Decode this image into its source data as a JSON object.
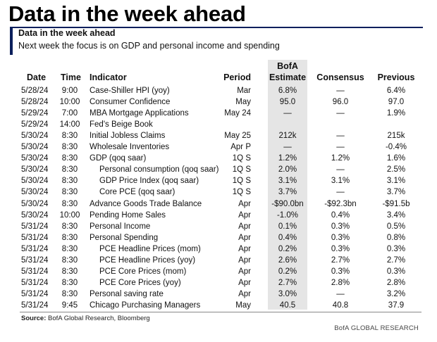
{
  "headline": "Data in the week ahead",
  "card": {
    "title": "Data in the week ahead",
    "subtitle": "Next week the focus is on GDP and personal income and spending"
  },
  "columns": {
    "date": "Date",
    "time": "Time",
    "indicator": "Indicator",
    "period": "Period",
    "bofa_line1": "BofA",
    "bofa_line2": "Estimate",
    "consensus": "Consensus",
    "previous": "Previous"
  },
  "rows": [
    {
      "date": "5/28/24",
      "time": "9:00",
      "indicator": "Case-Shiller HPI (yoy)",
      "sub": false,
      "period": "Mar",
      "estimate": "6.8%",
      "consensus": "—",
      "previous": "6.4%"
    },
    {
      "date": "5/28/24",
      "time": "10:00",
      "indicator": "Consumer Confidence",
      "sub": false,
      "period": "May",
      "estimate": "95.0",
      "consensus": "96.0",
      "previous": "97.0"
    },
    {
      "date": "5/29/24",
      "time": "7:00",
      "indicator": "MBA Mortgage Applications",
      "sub": false,
      "period": "May 24",
      "estimate": "—",
      "consensus": "—",
      "previous": "1.9%"
    },
    {
      "date": "5/29/24",
      "time": "14:00",
      "indicator": "Fed's Beige Book",
      "sub": false,
      "period": "",
      "estimate": "",
      "consensus": "",
      "previous": ""
    },
    {
      "date": "5/30/24",
      "time": "8:30",
      "indicator": "Initial Jobless Claims",
      "sub": false,
      "period": "May 25",
      "estimate": "212k",
      "consensus": "—",
      "previous": "215k"
    },
    {
      "date": "5/30/24",
      "time": "8:30",
      "indicator": "Wholesale Inventories",
      "sub": false,
      "period": "Apr P",
      "estimate": "—",
      "consensus": "—",
      "previous": "-0.4%"
    },
    {
      "date": "5/30/24",
      "time": "8:30",
      "indicator": "GDP (qoq saar)",
      "sub": false,
      "period": "1Q S",
      "estimate": "1.2%",
      "consensus": "1.2%",
      "previous": "1.6%"
    },
    {
      "date": "5/30/24",
      "time": "8:30",
      "indicator": "Personal consumption (qoq saar)",
      "sub": true,
      "period": "1Q S",
      "estimate": "2.0%",
      "consensus": "—",
      "previous": "2.5%"
    },
    {
      "date": "5/30/24",
      "time": "8:30",
      "indicator": "GDP Price Index (qoq saar)",
      "sub": true,
      "period": "1Q S",
      "estimate": "3.1%",
      "consensus": "3.1%",
      "previous": "3.1%"
    },
    {
      "date": "5/30/24",
      "time": "8:30",
      "indicator": "Core PCE (qoq saar)",
      "sub": true,
      "period": "1Q S",
      "estimate": "3.7%",
      "consensus": "—",
      "previous": "3.7%"
    },
    {
      "date": "5/30/24",
      "time": "8:30",
      "indicator": "Advance Goods Trade Balance",
      "sub": false,
      "period": "Apr",
      "estimate": "-$90.0bn",
      "consensus": "-$92.3bn",
      "previous": "-$91.5b"
    },
    {
      "date": "5/30/24",
      "time": "10:00",
      "indicator": "Pending Home Sales",
      "sub": false,
      "period": "Apr",
      "estimate": "-1.0%",
      "consensus": "0.4%",
      "previous": "3.4%"
    },
    {
      "date": "5/31/24",
      "time": "8:30",
      "indicator": "Personal Income",
      "sub": false,
      "period": "Apr",
      "estimate": "0.1%",
      "consensus": "0.3%",
      "previous": "0.5%"
    },
    {
      "date": "5/31/24",
      "time": "8:30",
      "indicator": "Personal Spending",
      "sub": false,
      "period": "Apr",
      "estimate": "0.4%",
      "consensus": "0.3%",
      "previous": "0.8%"
    },
    {
      "date": "5/31/24",
      "time": "8:30",
      "indicator": "PCE Headline Prices (mom)",
      "sub": true,
      "period": "Apr",
      "estimate": "0.2%",
      "consensus": "0.3%",
      "previous": "0.3%"
    },
    {
      "date": "5/31/24",
      "time": "8:30",
      "indicator": "PCE Headline Prices (yoy)",
      "sub": true,
      "period": "Apr",
      "estimate": "2.6%",
      "consensus": "2.7%",
      "previous": "2.7%"
    },
    {
      "date": "5/31/24",
      "time": "8:30",
      "indicator": "PCE Core Prices (mom)",
      "sub": true,
      "period": "Apr",
      "estimate": "0.2%",
      "consensus": "0.3%",
      "previous": "0.3%"
    },
    {
      "date": "5/31/24",
      "time": "8:30",
      "indicator": "PCE Core Prices (yoy)",
      "sub": true,
      "period": "Apr",
      "estimate": "2.7%",
      "consensus": "2.8%",
      "previous": "2.8%"
    },
    {
      "date": "5/31/24",
      "time": "8:30",
      "indicator": "Personal saving rate",
      "sub": false,
      "period": "Apr",
      "estimate": "3.0%",
      "consensus": "—",
      "previous": "3.2%"
    },
    {
      "date": "5/31/24",
      "time": "9:45",
      "indicator": "Chicago Purchasing Managers",
      "sub": false,
      "period": "May",
      "estimate": "40.5",
      "consensus": "40.8",
      "previous": "37.9"
    }
  ],
  "source_label": "Source:",
  "source_text": " BofA Global Research, Bloomberg",
  "brand": "BofA GLOBAL RESEARCH"
}
